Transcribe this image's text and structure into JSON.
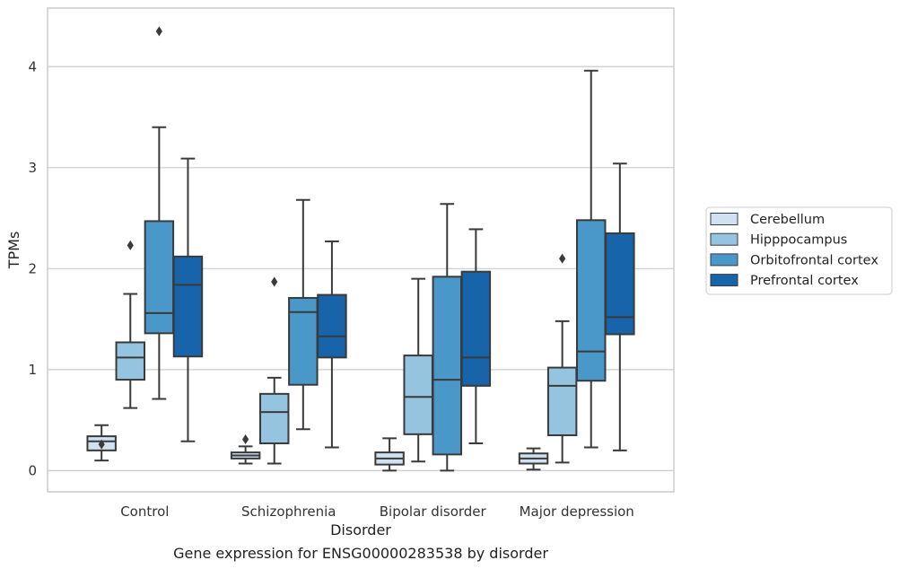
{
  "caption": "Gene expression for ENSG00000283538 by disorder",
  "chart_data": {
    "type": "box",
    "xlabel": "Disorder",
    "ylabel": "TPMs",
    "ylim": [
      -0.21,
      4.58
    ],
    "yticks": [
      0,
      1,
      2,
      3,
      4
    ],
    "grid": "horizontal",
    "legend_position": "right",
    "categories": [
      "Control",
      "Schizophrenia",
      "Bipolar disorder",
      "Major depression"
    ],
    "series": [
      {
        "name": "Cerebellum",
        "color": "#d0e1f2",
        "boxes": [
          {
            "whislo": 0.1,
            "q1": 0.2,
            "med": 0.29,
            "q3": 0.34,
            "whishi": 0.45,
            "fliers": [
              0.26
            ]
          },
          {
            "whislo": 0.07,
            "q1": 0.12,
            "med": 0.15,
            "q3": 0.18,
            "whishi": 0.24,
            "fliers": [
              0.31
            ]
          },
          {
            "whislo": 0.0,
            "q1": 0.06,
            "med": 0.12,
            "q3": 0.18,
            "whishi": 0.32,
            "fliers": []
          },
          {
            "whislo": 0.01,
            "q1": 0.07,
            "med": 0.12,
            "q3": 0.17,
            "whishi": 0.22,
            "fliers": []
          }
        ]
      },
      {
        "name": "Hipppocampus",
        "color": "#94c4df",
        "boxes": [
          {
            "whislo": 0.62,
            "q1": 0.9,
            "med": 1.12,
            "q3": 1.27,
            "whishi": 1.75,
            "fliers": [
              2.23
            ]
          },
          {
            "whislo": 0.07,
            "q1": 0.27,
            "med": 0.58,
            "q3": 0.76,
            "whishi": 0.92,
            "fliers": [
              1.87
            ]
          },
          {
            "whislo": 0.09,
            "q1": 0.36,
            "med": 0.73,
            "q3": 1.14,
            "whishi": 1.9,
            "fliers": []
          },
          {
            "whislo": 0.08,
            "q1": 0.35,
            "med": 0.84,
            "q3": 1.02,
            "whishi": 1.48,
            "fliers": [
              2.1
            ]
          }
        ]
      },
      {
        "name": "Orbitofrontal cortex",
        "color": "#4a98c9",
        "boxes": [
          {
            "whislo": 0.71,
            "q1": 1.36,
            "med": 1.56,
            "q3": 2.47,
            "whishi": 3.4,
            "fliers": [
              4.35
            ]
          },
          {
            "whislo": 0.41,
            "q1": 0.85,
            "med": 1.57,
            "q3": 1.71,
            "whishi": 2.68,
            "fliers": []
          },
          {
            "whislo": 0.0,
            "q1": 0.16,
            "med": 0.9,
            "q3": 1.92,
            "whishi": 2.64,
            "fliers": []
          },
          {
            "whislo": 0.23,
            "q1": 0.89,
            "med": 1.18,
            "q3": 2.48,
            "whishi": 3.96,
            "fliers": []
          }
        ]
      },
      {
        "name": "Prefrontal cortex",
        "color": "#1764ab",
        "boxes": [
          {
            "whislo": 0.29,
            "q1": 1.13,
            "med": 1.84,
            "q3": 2.12,
            "whishi": 3.09,
            "fliers": []
          },
          {
            "whislo": 0.23,
            "q1": 1.12,
            "med": 1.33,
            "q3": 1.74,
            "whishi": 2.27,
            "fliers": []
          },
          {
            "whislo": 0.27,
            "q1": 0.84,
            "med": 1.12,
            "q3": 1.97,
            "whishi": 2.39,
            "fliers": []
          },
          {
            "whislo": 0.2,
            "q1": 1.35,
            "med": 1.52,
            "q3": 2.35,
            "whishi": 3.04,
            "fliers": []
          }
        ]
      }
    ]
  }
}
